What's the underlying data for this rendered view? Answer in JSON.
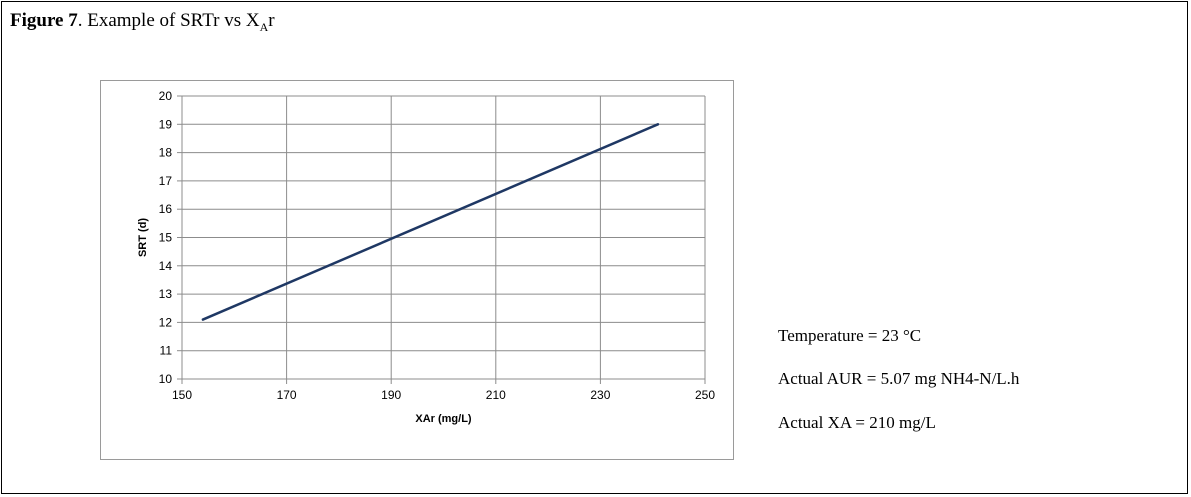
{
  "caption": {
    "label": "Figure 7",
    "text_before_sub": ". Example of SRTr vs  X",
    "sub": "A",
    "text_after_sub": "r"
  },
  "annotations": [
    "Temperature = 23 °C",
    "Actual AUR = 5.07 mg NH4-N/L.h",
    "Actual XA = 210 mg/L"
  ],
  "chart_data": {
    "type": "line",
    "title": "",
    "xlabel": "XAr (mg/L)",
    "ylabel": "SRT (d)",
    "xlim": [
      150,
      250
    ],
    "ylim": [
      10,
      20
    ],
    "xticks": [
      150,
      170,
      190,
      210,
      230,
      250
    ],
    "yticks": [
      10,
      11,
      12,
      13,
      14,
      15,
      16,
      17,
      18,
      19,
      20
    ],
    "grid": true,
    "legend": "none",
    "series": [
      {
        "x": [
          154,
          241
        ],
        "y": [
          12.1,
          19.0
        ],
        "color": "#1f3864"
      }
    ]
  }
}
